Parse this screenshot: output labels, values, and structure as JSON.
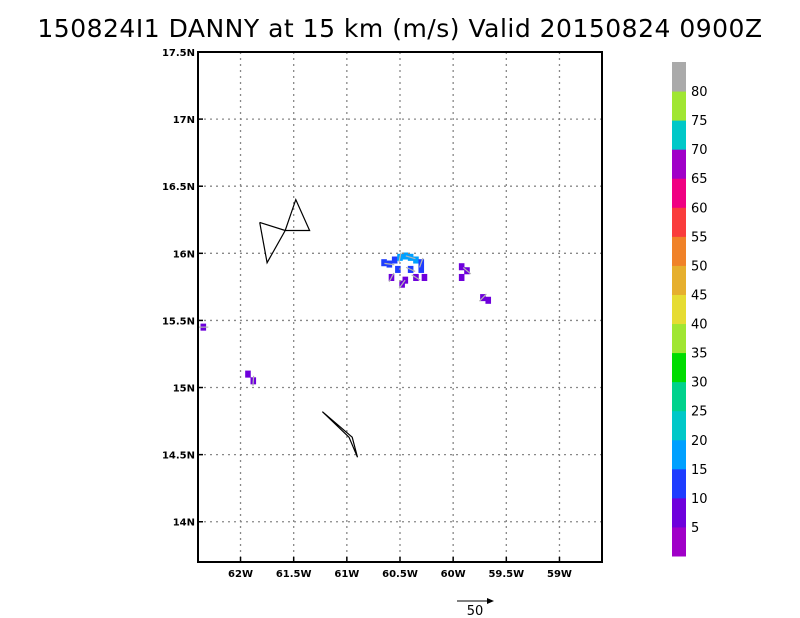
{
  "title": "150824I1 DANNY at 15 km (m/s) Valid 20150824 0900Z",
  "chart_data": {
    "type": "heatmap",
    "units": "m/s",
    "xlim": [
      -62.4,
      -58.6
    ],
    "ylim": [
      13.7,
      17.5
    ],
    "x_ticks": [
      -62,
      -61.5,
      -61,
      -60.5,
      -60,
      -59.5,
      -59
    ],
    "x_tick_labels": [
      "62W",
      "61.5W",
      "61W",
      "60.5W",
      "60W",
      "59.5W",
      "59W"
    ],
    "y_ticks": [
      14,
      14.5,
      15,
      15.5,
      16,
      16.5,
      17,
      17.5
    ],
    "y_tick_labels": [
      "14N",
      "14.5N",
      "15N",
      "15.5N",
      "16N",
      "16.5N",
      "17N",
      "17.5N"
    ],
    "grid": true,
    "colorbar": {
      "labels": [
        "5",
        "10",
        "15",
        "20",
        "25",
        "30",
        "35",
        "40",
        "45",
        "50",
        "55",
        "60",
        "65",
        "70",
        "75",
        "80"
      ],
      "colors": [
        "#a000c8",
        "#6e00dc",
        "#1e3cff",
        "#00a0ff",
        "#00c8c8",
        "#00d28c",
        "#00dc00",
        "#a0e632",
        "#e6dc32",
        "#e6af2d",
        "#f08228",
        "#fa3c3c",
        "#f00082",
        "#a000c8",
        "#00c8c8",
        "#a0e632",
        "#aaaaaa"
      ]
    },
    "wind_cells": [
      {
        "lon": -62.35,
        "lat": 15.45,
        "speed": 7
      },
      {
        "lon": -61.93,
        "lat": 15.1,
        "speed": 7
      },
      {
        "lon": -61.88,
        "lat": 15.05,
        "speed": 6
      },
      {
        "lon": -60.65,
        "lat": 15.93,
        "speed": 14
      },
      {
        "lon": -60.6,
        "lat": 15.92,
        "speed": 14
      },
      {
        "lon": -60.55,
        "lat": 15.95,
        "speed": 13
      },
      {
        "lon": -60.5,
        "lat": 15.97,
        "speed": 15
      },
      {
        "lon": -60.45,
        "lat": 15.98,
        "speed": 17
      },
      {
        "lon": -60.4,
        "lat": 15.97,
        "speed": 17
      },
      {
        "lon": -60.35,
        "lat": 15.95,
        "speed": 16
      },
      {
        "lon": -60.3,
        "lat": 15.93,
        "speed": 14
      },
      {
        "lon": -60.52,
        "lat": 15.88,
        "speed": 11
      },
      {
        "lon": -60.4,
        "lat": 15.88,
        "speed": 11
      },
      {
        "lon": -60.3,
        "lat": 15.88,
        "speed": 12
      },
      {
        "lon": -60.58,
        "lat": 15.82,
        "speed": 7
      },
      {
        "lon": -60.45,
        "lat": 15.8,
        "speed": 7
      },
      {
        "lon": -60.35,
        "lat": 15.82,
        "speed": 7
      },
      {
        "lon": -60.27,
        "lat": 15.82,
        "speed": 6
      },
      {
        "lon": -60.48,
        "lat": 15.77,
        "speed": 5
      },
      {
        "lon": -59.92,
        "lat": 15.9,
        "speed": 7
      },
      {
        "lon": -59.87,
        "lat": 15.87,
        "speed": 7
      },
      {
        "lon": -59.92,
        "lat": 15.82,
        "speed": 7
      },
      {
        "lon": -59.72,
        "lat": 15.67,
        "speed": 7
      },
      {
        "lon": -59.67,
        "lat": 15.65,
        "speed": 7
      }
    ],
    "island_outlines": [
      [
        [
          -61.82,
          16.23
        ],
        [
          -61.75,
          15.93
        ],
        [
          -61.58,
          16.17
        ],
        [
          -61.48,
          16.4
        ],
        [
          -61.35,
          16.17
        ],
        [
          -61.58,
          16.17
        ],
        [
          -61.82,
          16.23
        ]
      ],
      [
        [
          -61.23,
          14.82
        ],
        [
          -60.98,
          14.63
        ],
        [
          -60.9,
          14.48
        ],
        [
          -60.95,
          14.63
        ],
        [
          -61.23,
          14.82
        ]
      ]
    ],
    "reference_vector": {
      "label": "50"
    }
  }
}
